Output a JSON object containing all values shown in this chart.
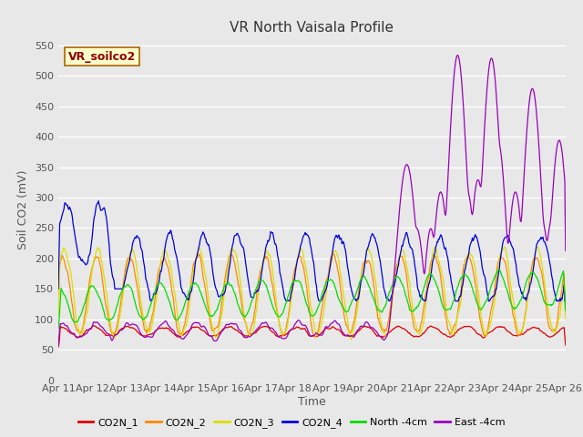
{
  "title": "VR North Vaisala Profile",
  "xlabel": "Time",
  "ylabel": "Soil CO2 (mV)",
  "annotation": "VR_soilco2",
  "ylim": [
    0,
    560
  ],
  "yticks": [
    0,
    50,
    100,
    150,
    200,
    250,
    300,
    350,
    400,
    450,
    500,
    550
  ],
  "xtick_labels": [
    "Apr 11",
    "Apr 12",
    "Apr 13",
    "Apr 14",
    "Apr 15",
    "Apr 16",
    "Apr 17",
    "Apr 18",
    "Apr 19",
    "Apr 20",
    "Apr 21",
    "Apr 22",
    "Apr 23",
    "Apr 24",
    "Apr 25",
    "Apr 26"
  ],
  "series_colors": {
    "CO2N_1": "#dd0000",
    "CO2N_2": "#ff8800",
    "CO2N_3": "#dddd00",
    "CO2N_4": "#0000dd",
    "North_4cm": "#00dd00",
    "East_4cm": "#9900bb"
  },
  "bg_color": "#e8e8e8",
  "plot_bg_color": "#e8e8e8",
  "grid_color": "#ffffff",
  "title_fontsize": 11,
  "axis_fontsize": 9,
  "tick_fontsize": 8,
  "legend_fontsize": 8
}
